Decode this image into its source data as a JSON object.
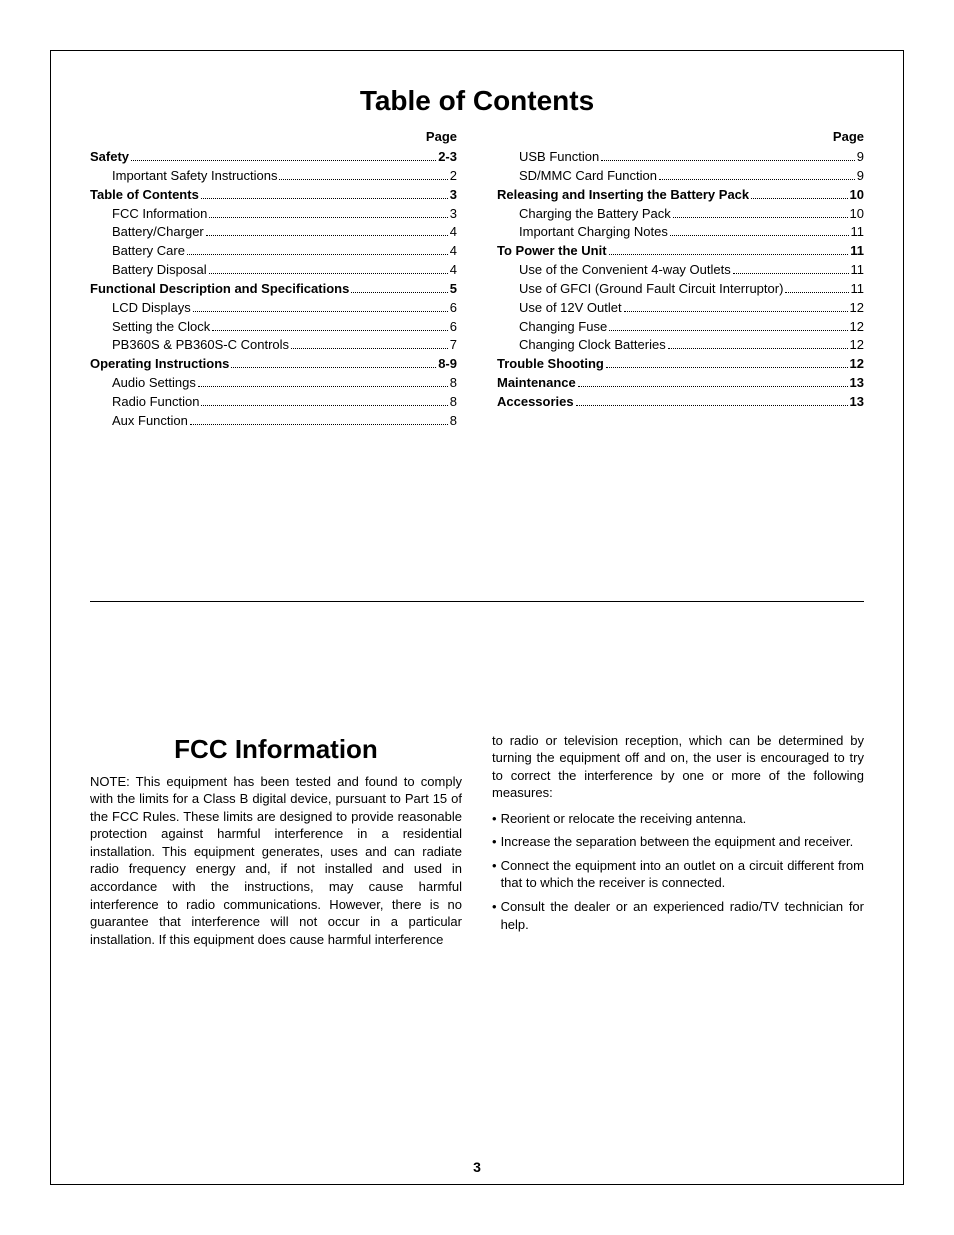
{
  "colors": {
    "text": "#000000",
    "background": "#ffffff",
    "border": "#000000"
  },
  "typography": {
    "title_fontsize": 28,
    "section_title_fontsize": 26,
    "body_fontsize": 13,
    "page_header_fontsize": 13,
    "page_number_fontsize": 14,
    "font_family": "Arial, Helvetica, sans-serif"
  },
  "toc": {
    "title": "Table of Contents",
    "page_label": "Page",
    "left": [
      {
        "label": "Safety",
        "page": "2-3",
        "bold": true,
        "indent": false
      },
      {
        "label": "Important Safety Instructions",
        "page": "2",
        "bold": false,
        "indent": true
      },
      {
        "label": "Table of Contents",
        "page": "3",
        "bold": true,
        "indent": false
      },
      {
        "label": "FCC Information",
        "page": "3",
        "bold": false,
        "indent": true
      },
      {
        "label": "Battery/Charger",
        "page": "4",
        "bold": false,
        "indent": true
      },
      {
        "label": "Battery Care",
        "page": "4",
        "bold": false,
        "indent": true
      },
      {
        "label": "Battery Disposal",
        "page": "4",
        "bold": false,
        "indent": true
      },
      {
        "label": "Functional Description and Specifications",
        "page": "5",
        "bold": true,
        "indent": false
      },
      {
        "label": "LCD Displays",
        "page": "6",
        "bold": false,
        "indent": true
      },
      {
        "label": "Setting the Clock",
        "page": "6",
        "bold": false,
        "indent": true
      },
      {
        "label": "PB360S & PB360S-C Controls",
        "page": "7",
        "bold": false,
        "indent": true
      },
      {
        "label": "Operating Instructions",
        "page": "8-9",
        "bold": true,
        "indent": false
      },
      {
        "label": "Audio Settings",
        "page": "8",
        "bold": false,
        "indent": true
      },
      {
        "label": "Radio Function",
        "page": "8",
        "bold": false,
        "indent": true
      },
      {
        "label": "Aux Function",
        "page": "8",
        "bold": false,
        "indent": true
      }
    ],
    "right": [
      {
        "label": "USB Function",
        "page": "9",
        "bold": false,
        "indent": true
      },
      {
        "label": "SD/MMC Card Function",
        "page": "9",
        "bold": false,
        "indent": true
      },
      {
        "label": "Releasing and Inserting the Battery Pack",
        "page": "10",
        "bold": true,
        "indent": false
      },
      {
        "label": "Charging the Battery Pack",
        "page": "10",
        "bold": false,
        "indent": true
      },
      {
        "label": "Important Charging Notes",
        "page": "11",
        "bold": false,
        "indent": true
      },
      {
        "label": "To Power the Unit",
        "page": "11",
        "bold": true,
        "indent": false
      },
      {
        "label": "Use of the Convenient 4-way Outlets",
        "page": "11",
        "bold": false,
        "indent": true
      },
      {
        "label": "Use of GFCI (Ground Fault Circuit Interruptor)",
        "page": "11",
        "bold": false,
        "indent": true
      },
      {
        "label": "Use of 12V Outlet",
        "page": "12",
        "bold": false,
        "indent": true
      },
      {
        "label": "Changing Fuse",
        "page": "12",
        "bold": false,
        "indent": true
      },
      {
        "label": "Changing Clock Batteries",
        "page": "12",
        "bold": false,
        "indent": true
      },
      {
        "label": "Trouble Shooting",
        "page": "12",
        "bold": true,
        "indent": false
      },
      {
        "label": "Maintenance",
        "page": "13",
        "bold": true,
        "indent": false
      },
      {
        "label": "Accessories",
        "page": "13",
        "bold": true,
        "indent": false
      }
    ]
  },
  "fcc": {
    "title": "FCC Information",
    "left_para": "NOTE: This equipment has been tested and found to comply with the limits for a Class B digital device, pursuant to Part 15 of the FCC Rules. These limits are designed to provide reasonable protection against harmful interference in a residential installation. This equipment generates, uses and can radiate radio frequency energy and, if not installed and used in accordance with the instructions, may cause harmful interference to radio communications. However, there is no guarantee that interference will not occur in a particular installation. If this equipment does cause harmful interference",
    "right_para": "to radio or television reception, which can be determined by turning the equipment off and on, the user is encouraged to try to correct the interference by one or more of the following measures:",
    "bullets": [
      "Reorient or relocate the receiving antenna.",
      "Increase the separation between the equipment and receiver.",
      "Connect the equipment into an outlet on a circuit different from that to which the receiver is connected.",
      "Consult the dealer or an experienced radio/TV technician for help."
    ]
  },
  "page_number": "3"
}
